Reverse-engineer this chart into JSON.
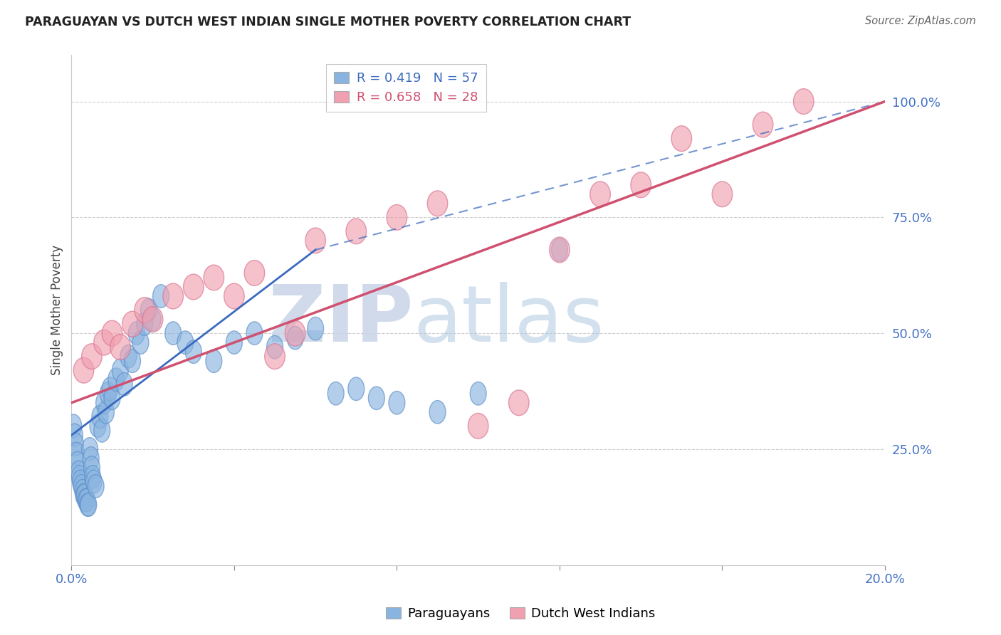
{
  "title": "PARAGUAYAN VS DUTCH WEST INDIAN SINGLE MOTHER POVERTY CORRELATION CHART",
  "source": "Source: ZipAtlas.com",
  "ylabel": "Single Mother Poverty",
  "blue_R": 0.419,
  "blue_N": 57,
  "pink_R": 0.658,
  "pink_N": 28,
  "blue_color": "#89b4e0",
  "blue_edge_color": "#5b8ec7",
  "pink_color": "#f0a0b0",
  "pink_edge_color": "#d87090",
  "blue_line_color": "#3a6abf",
  "pink_line_color": "#d05070",
  "watermark_ZIP": "ZIP",
  "watermark_atlas": "atlas",
  "watermark_color_ZIP": "#c8d4e8",
  "watermark_color_atlas": "#b0c8e0",
  "legend_label_blue": "Paraguayans",
  "legend_label_pink": "Dutch West Indians",
  "xlim": [
    0.0,
    20.0
  ],
  "ylim": [
    0.0,
    110.0
  ],
  "right_yticks": [
    25,
    50,
    75,
    100
  ],
  "right_ytick_labels": [
    "25.0%",
    "50.0%",
    "75.0%",
    "100.0%"
  ],
  "grid_color": "#c8c8c8",
  "background_color": "#ffffff",
  "blue_scatter_x": [
    0.05,
    0.08,
    0.1,
    0.12,
    0.15,
    0.18,
    0.2,
    0.22,
    0.25,
    0.28,
    0.3,
    0.32,
    0.35,
    0.38,
    0.4,
    0.42,
    0.45,
    0.48,
    0.5,
    0.52,
    0.55,
    0.6,
    0.65,
    0.7,
    0.75,
    0.8,
    0.85,
    0.9,
    0.95,
    1.0,
    1.1,
    1.2,
    1.3,
    1.4,
    1.5,
    1.6,
    1.7,
    1.8,
    1.9,
    2.0,
    2.2,
    2.5,
    2.8,
    3.0,
    3.5,
    4.0,
    4.5,
    5.0,
    5.5,
    6.0,
    6.5,
    7.0,
    7.5,
    8.0,
    9.0,
    10.0,
    12.0
  ],
  "blue_scatter_y": [
    30,
    28,
    26,
    24,
    22,
    20,
    19,
    18,
    17,
    16,
    15,
    15,
    14,
    14,
    13,
    13,
    25,
    23,
    21,
    19,
    18,
    17,
    30,
    32,
    29,
    35,
    33,
    37,
    38,
    36,
    40,
    42,
    39,
    45,
    44,
    50,
    48,
    52,
    55,
    53,
    58,
    50,
    48,
    46,
    44,
    48,
    50,
    47,
    49,
    51,
    37,
    38,
    36,
    35,
    33,
    37,
    68
  ],
  "pink_scatter_x": [
    0.3,
    0.5,
    0.8,
    1.0,
    1.2,
    1.5,
    1.8,
    2.0,
    2.5,
    3.0,
    3.5,
    4.0,
    4.5,
    5.0,
    5.5,
    6.0,
    7.0,
    8.0,
    9.0,
    10.0,
    11.0,
    12.0,
    13.0,
    14.0,
    15.0,
    16.0,
    17.0,
    18.0
  ],
  "pink_scatter_y": [
    42,
    45,
    48,
    50,
    47,
    52,
    55,
    53,
    58,
    60,
    62,
    58,
    63,
    45,
    50,
    70,
    72,
    75,
    78,
    30,
    35,
    68,
    80,
    82,
    92,
    80,
    95,
    100
  ],
  "blue_line_x0": 0.0,
  "blue_line_y0": 28.0,
  "blue_line_x1": 6.0,
  "blue_line_y1": 68.0,
  "blue_dash_x0": 6.0,
  "blue_dash_y0": 68.0,
  "blue_dash_x1": 20.0,
  "blue_dash_y1": 100.0,
  "pink_line_x0": 0.0,
  "pink_line_y0": 35.0,
  "pink_line_x1": 20.0,
  "pink_line_y1": 100.0
}
